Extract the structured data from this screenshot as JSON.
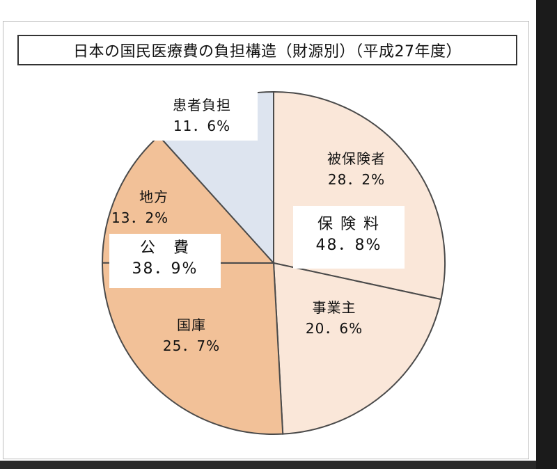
{
  "title": "日本の国民医療費の負担構造（財源別）（平成27年度）",
  "chart_data": {
    "type": "pie",
    "title": "日本の国民医療費の負担構造（財源別）（平成27年度）",
    "slices": [
      {
        "name": "被保険者",
        "value_label": "28．2%",
        "value": 28.2,
        "color": "#fae7d9"
      },
      {
        "name": "事業主",
        "value_label": "20．6%",
        "value": 20.6,
        "color": "#fae7d9"
      },
      {
        "name": "国庫",
        "value_label": "25．7%",
        "value": 25.7,
        "color": "#f2c198"
      },
      {
        "name": "地方",
        "value_label": "13．2%",
        "value": 13.2,
        "color": "#f2c198"
      },
      {
        "name": "患者負担",
        "value_label": "11．6%",
        "value": 11.6,
        "color": "#dde4ef"
      }
    ],
    "groups": [
      {
        "name": "保 険 料",
        "value_label": "48．8%",
        "value": 48.8
      },
      {
        "name": "公　費",
        "value_label": "38．9%",
        "value": 38.9
      }
    ]
  }
}
